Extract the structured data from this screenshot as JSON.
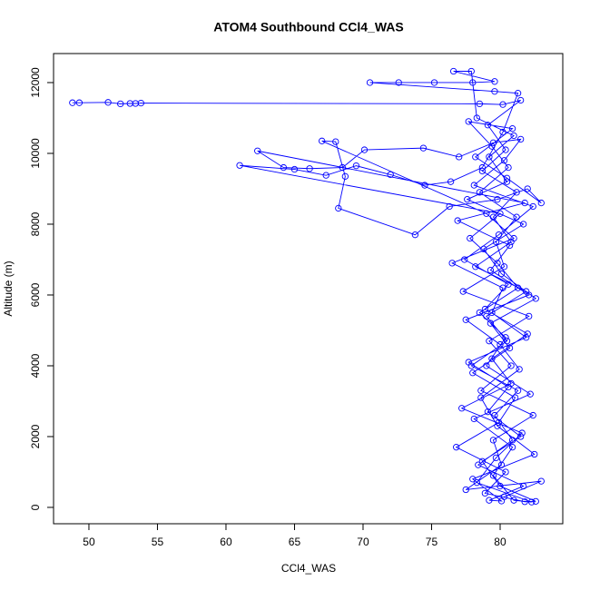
{
  "chart_data": {
    "type": "line",
    "title": "ATOM4 Southbound CCl4_WAS",
    "x_label": "CCl4_WAS",
    "y_label": "Altitude (m)",
    "color": "#0000ff",
    "xlim": [
      47.42,
      84.57
    ],
    "ylim": [
      -462,
      12820
    ],
    "xticks": [
      50,
      55,
      60,
      65,
      70,
      75,
      80
    ],
    "yticks": [
      0,
      2000,
      4000,
      6000,
      8000,
      10000,
      12000
    ],
    "x": [
      48.8,
      49.3,
      51.4,
      52.3,
      53.0,
      53.4,
      53.8,
      78.5,
      80.2,
      81.5,
      79.1,
      80.4,
      78.7,
      81.2,
      79.5,
      80.8,
      78.2,
      81.9,
      79.0,
      80.5,
      77.9,
      81.3,
      79.6,
      80.9,
      78.4,
      81.7,
      79.2,
      80.1,
      78.0,
      82.5,
      79.8,
      78.6,
      81.4,
      80.0,
      77.5,
      82.1,
      79.3,
      80.7,
      76.9,
      81.8,
      62.3,
      64.2,
      66.1,
      68.5,
      70.1,
      74.4,
      77.0,
      79.5,
      81.5,
      80.3,
      78.1,
      82.4,
      79.9,
      77.4,
      80.6,
      78.9,
      82.0,
      79.4,
      80.8,
      77.2,
      81.6,
      79.7,
      78.3,
      82.3,
      81.0,
      79.5,
      80.9,
      78.1,
      82.2,
      79.0,
      80.4,
      78.5,
      81.3,
      79.8,
      77.8,
      80.0,
      61.0,
      65.0,
      67.3,
      69.5,
      72.0,
      74.5,
      76.4,
      78.7,
      80.2,
      81.3,
      79.6,
      70.5,
      72.6,
      75.2,
      78.0,
      79.6,
      76.6,
      77.9,
      78.3,
      81.0,
      79.2,
      80.5,
      77.6,
      81.7,
      78.8,
      80.1,
      82.6,
      79.3,
      80.7,
      78.0,
      81.1,
      79.9,
      76.8,
      80.4,
      78.9,
      81.8,
      82.6,
      80.0,
      78.7,
      81.5,
      79.1,
      80.6,
      77.7,
      81.9,
      79.4,
      80.2,
      76.5,
      81.0,
      79.0,
      67.0,
      68.0,
      68.7,
      68.2,
      73.8,
      76.3,
      79.8,
      82.0,
      83.0,
      80.5,
      78.2,
      80.9,
      77.7,
      79.4,
      80.6,
      78.5,
      81.2,
      79.7,
      80.3,
      77.3,
      82.1,
      79.2,
      80.8,
      78.6,
      82.4,
      79.5,
      80.1,
      77.5,
      83.0,
      80.3
    ],
    "values": [
      11430,
      11430,
      11440,
      11400,
      11410,
      11410,
      11420,
      11400,
      11380,
      11500,
      10800,
      10100,
      9500,
      8900,
      8200,
      7500,
      6800,
      6100,
      5400,
      4700,
      4000,
      3300,
      2600,
      1900,
      1200,
      600,
      200,
      180,
      800,
      1500,
      2300,
      3100,
      3900,
      4600,
      5300,
      6000,
      6700,
      7400,
      8100,
      8600,
      10070,
      9600,
      9570,
      9600,
      10100,
      10150,
      9900,
      10300,
      10400,
      9800,
      9100,
      8500,
      7700,
      7000,
      6300,
      5600,
      4900,
      4200,
      3500,
      2800,
      2100,
      1400,
      700,
      150,
      200,
      900,
      1700,
      2500,
      3200,
      4000,
      4800,
      5500,
      6200,
      6900,
      7600,
      8300,
      9660,
      9550,
      9380,
      9650,
      9400,
      9100,
      9200,
      9600,
      10600,
      11700,
      11750,
      12000,
      12000,
      12000,
      12000,
      12030,
      12320,
      12320,
      11000,
      10500,
      9900,
      9200,
      8700,
      8000,
      7300,
      6600,
      5900,
      5200,
      4500,
      3800,
      3100,
      2400,
      1700,
      1000,
      400,
      160,
      170,
      600,
      1300,
      2000,
      2700,
      3400,
      4100,
      4800,
      5500,
      6200,
      6900,
      7600,
      8300,
      10350,
      10330,
      9350,
      8450,
      7700,
      8500,
      8700,
      9000,
      8600,
      9300,
      9900,
      10700,
      10900,
      10200,
      9600,
      8900,
      8200,
      7500,
      6800,
      6100,
      5400,
      4700,
      4000,
      3300,
      2600,
      1900,
      1200,
      500,
      740,
      300
    ]
  }
}
